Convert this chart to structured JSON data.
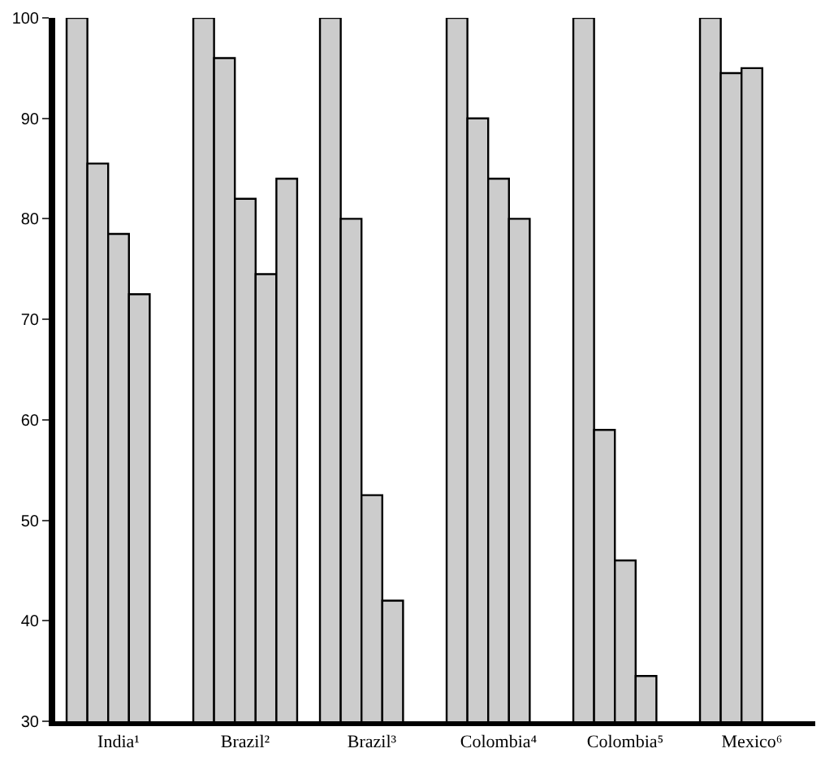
{
  "chart_data": {
    "type": "bar",
    "categories": [
      "India¹",
      "Brazil²",
      "Brazil³",
      "Colombia⁴",
      "Colombia⁵",
      "Mexico⁶"
    ],
    "series": [
      {
        "color": "#cccccc",
        "values": [
          100,
          100,
          100,
          100,
          100,
          100
        ]
      },
      {
        "color": "#cccccc",
        "values": [
          85.5,
          96,
          80,
          90,
          59,
          94.5
        ]
      },
      {
        "color": "#cccccc",
        "values": [
          78.5,
          82,
          52.5,
          84,
          46,
          95
        ]
      },
      {
        "color": "#cccccc",
        "values": [
          72.5,
          74.5,
          42,
          80,
          34.5,
          null
        ]
      },
      {
        "color": "#cccccc",
        "values": [
          null,
          84,
          null,
          null,
          null,
          null
        ]
      }
    ],
    "ylim": [
      30,
      100
    ],
    "yticks": [
      30,
      40,
      50,
      60,
      70,
      80,
      90,
      100
    ],
    "grid": false
  }
}
